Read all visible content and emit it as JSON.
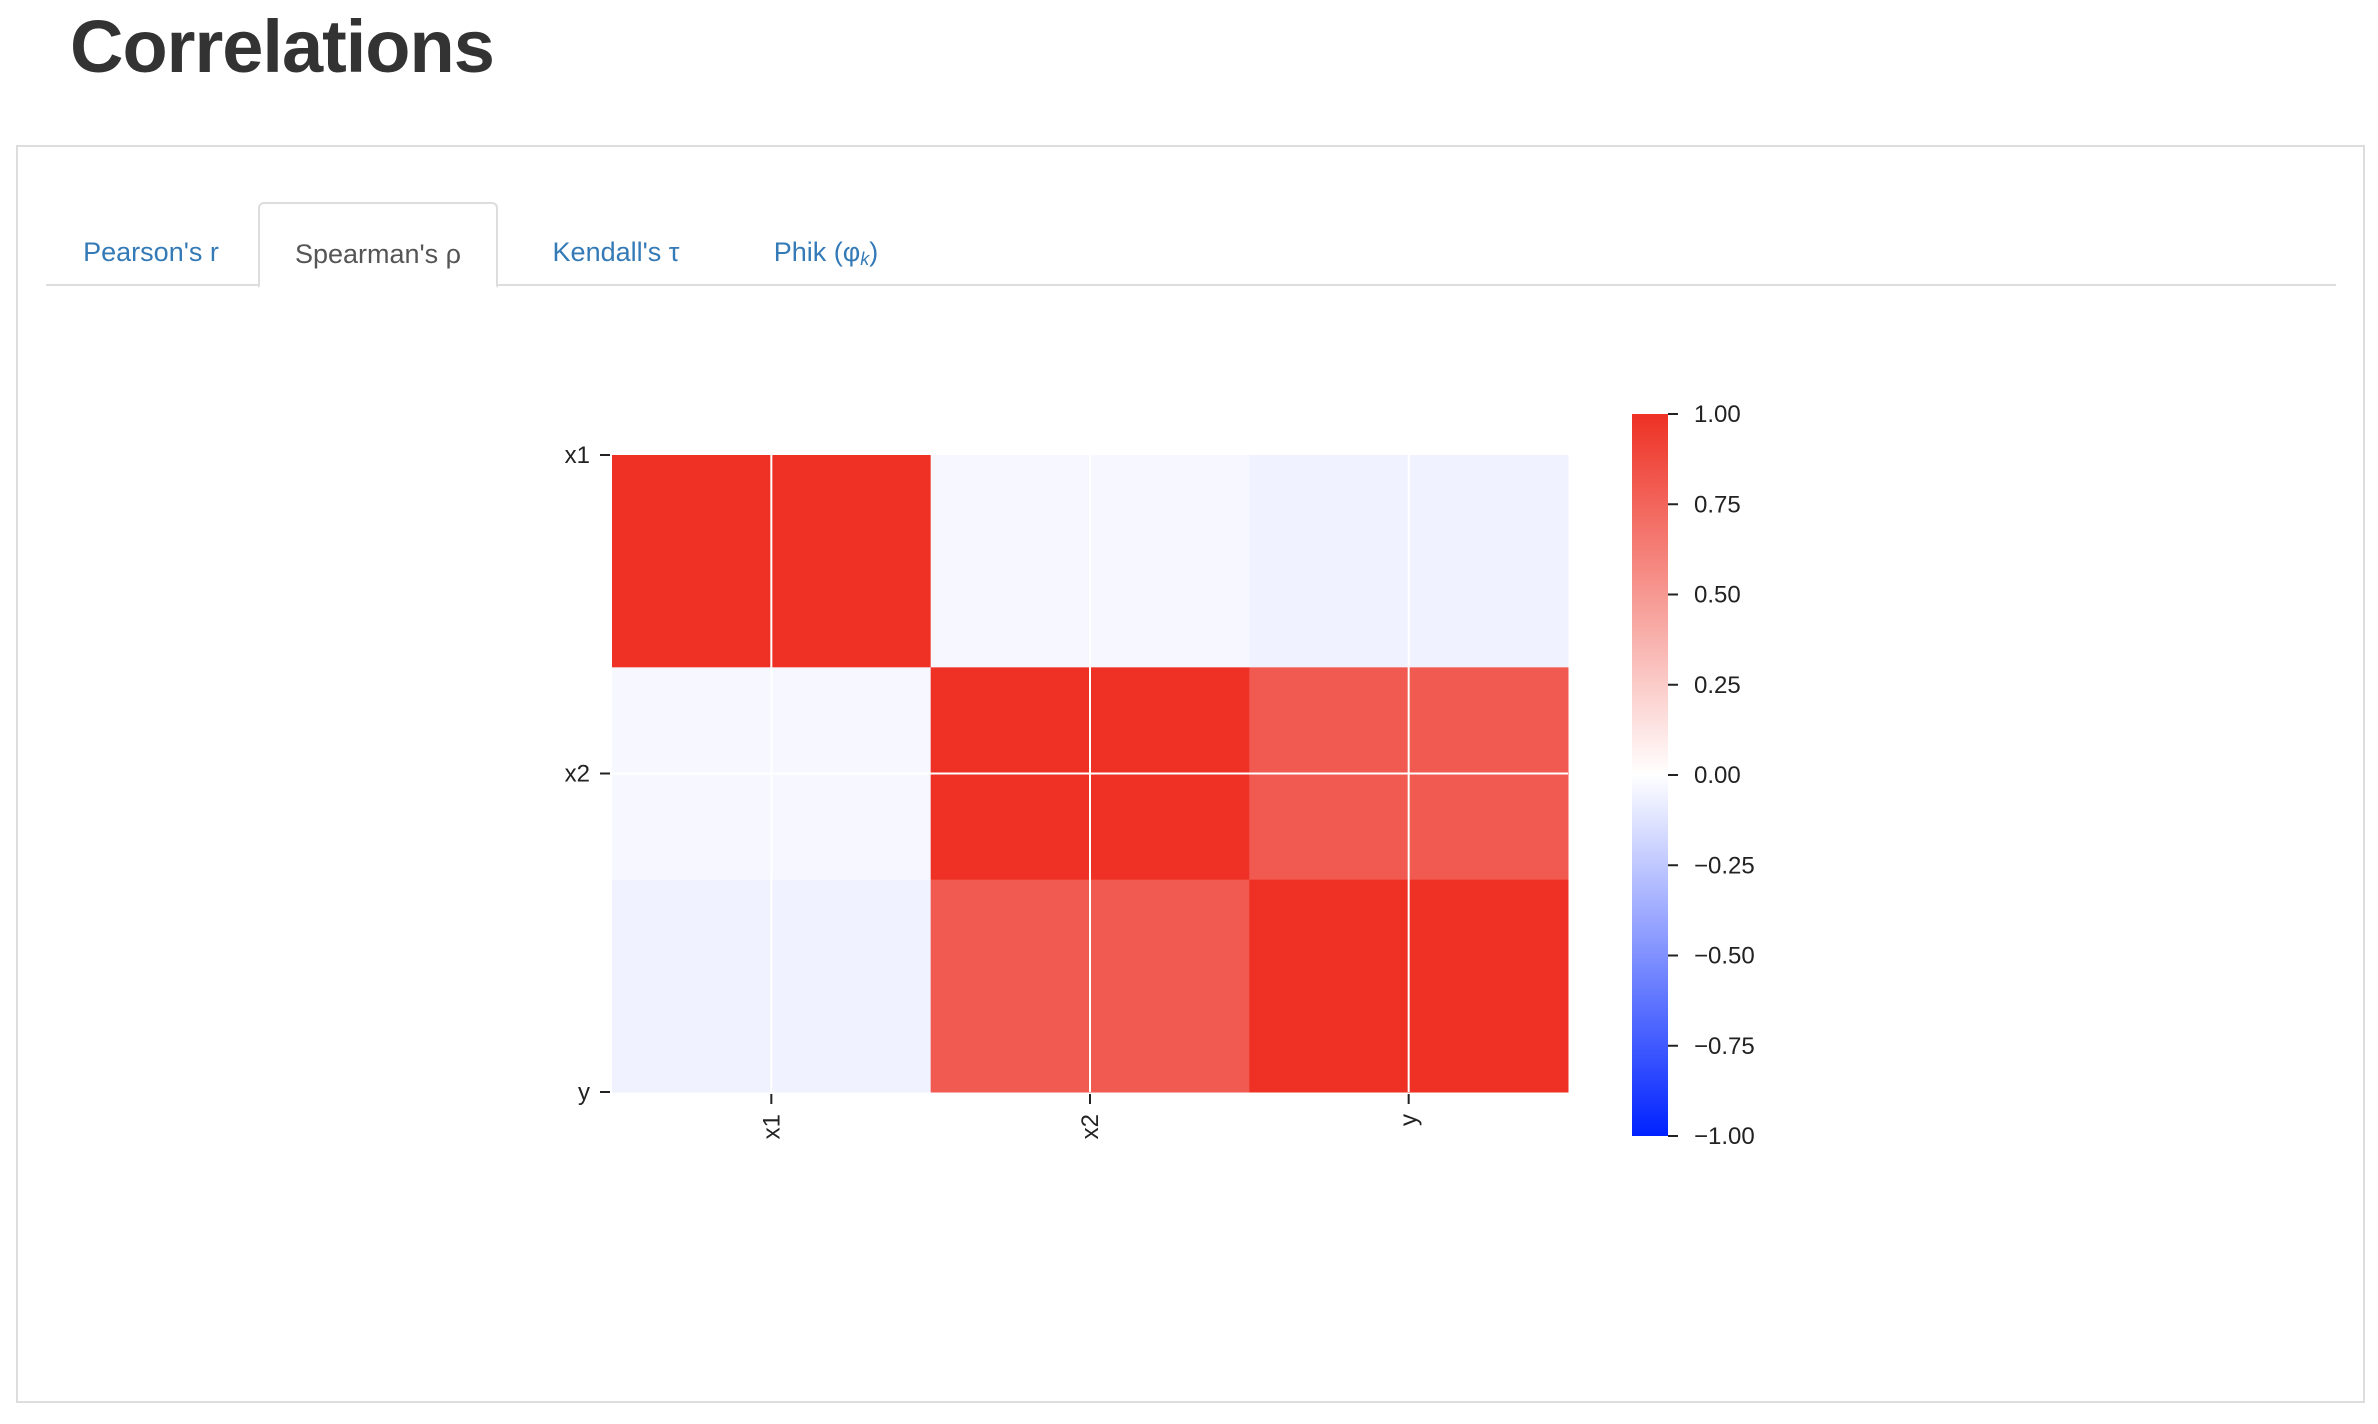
{
  "page": {
    "title": "Correlations"
  },
  "tabs": [
    {
      "label": "Pearson's r",
      "sub": "",
      "active": false
    },
    {
      "label": "Spearman's ρ",
      "sub": "",
      "active": true
    },
    {
      "label": "Kendall's τ",
      "sub": "",
      "active": false
    },
    {
      "label": "Phik (φ",
      "sub": "k",
      "close": ")",
      "active": false
    }
  ],
  "chart_data": {
    "type": "heatmap",
    "variables": [
      "x1",
      "x2",
      "y"
    ],
    "matrix": [
      [
        1.0,
        -0.03,
        -0.06
      ],
      [
        -0.03,
        1.0,
        0.8
      ],
      [
        -0.06,
        0.8,
        1.0
      ]
    ],
    "x_tick_labels": [
      "x1",
      "x2",
      "y"
    ],
    "y_tick_labels": [
      "x1",
      "x2",
      "y"
    ],
    "colorbar": {
      "vmin": -1.0,
      "vmax": 1.0,
      "tick_values": [
        1.0,
        0.75,
        0.5,
        0.25,
        0.0,
        -0.25,
        -0.5,
        -0.75,
        -1.0
      ],
      "tick_labels": [
        "1.00",
        "0.75",
        "0.50",
        "0.25",
        "0.00",
        "−0.25",
        "−0.50",
        "−0.75",
        "−1.00"
      ],
      "color_low": "#0022ff",
      "color_mid": "#ffffff",
      "color_high": "#ee3124"
    },
    "grid_color": "#ffffff"
  }
}
